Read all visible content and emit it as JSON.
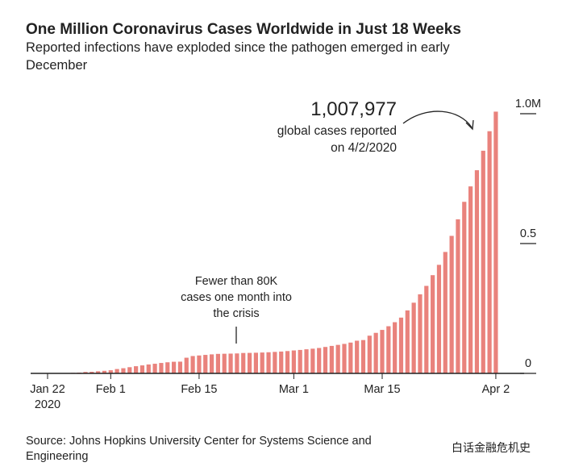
{
  "chart_data": {
    "type": "bar",
    "title": "One Million Coronavirus Cases Worldwide in Just 18 Weeks",
    "subtitle": [
      "Reported infections have exploded since the pathogen emerged in early",
      "December"
    ],
    "categories": [
      "Jan 22",
      null,
      null,
      null,
      null,
      null,
      null,
      null,
      null,
      null,
      "Feb 1",
      null,
      null,
      null,
      null,
      null,
      null,
      null,
      null,
      null,
      null,
      null,
      null,
      null,
      "Feb 15",
      null,
      null,
      null,
      null,
      null,
      null,
      null,
      null,
      null,
      null,
      null,
      null,
      null,
      null,
      "Mar 1",
      null,
      null,
      null,
      null,
      null,
      null,
      null,
      null,
      null,
      null,
      null,
      null,
      null,
      "Mar 15",
      null,
      null,
      null,
      null,
      null,
      null,
      null,
      null,
      null,
      null,
      null,
      null,
      null,
      null,
      null,
      null,
      null,
      "Apr 2"
    ],
    "first_category_year": "2020",
    "values": [
      555,
      654,
      941,
      1434,
      2118,
      2927,
      5578,
      6166,
      8234,
      9927,
      12038,
      16787,
      19881,
      23892,
      27635,
      30794,
      34391,
      37120,
      40150,
      42762,
      44802,
      45221,
      60368,
      66885,
      69030,
      71224,
      73258,
      75136,
      75639,
      76197,
      76819,
      78572,
      78958,
      79561,
      80406,
      81388,
      82746,
      84112,
      86011,
      88369,
      90306,
      92840,
      95120,
      97886,
      101801,
      105847,
      109821,
      113590,
      118620,
      125875,
      128352,
      145205,
      156101,
      167454,
      181574,
      197102,
      214821,
      242570,
      272208,
      304507,
      336953,
      378235,
      418045,
      467653,
      529591,
      593291,
      660706,
      720117,
      782365,
      857487,
      932605,
      1007977
    ],
    "color": "#e9827c",
    "ylim": [
      0,
      1000000
    ],
    "yticks": [
      0,
      {
        "value": 500000,
        "label": "0.5"
      },
      {
        "value": 1000000,
        "label": "1.0M"
      }
    ],
    "annotations": [
      {
        "lines": [
          "1,007,977",
          "global cases reported",
          "on 4/2/2020"
        ]
      },
      {
        "lines": [
          "Fewer than 80K",
          "cases one month into",
          "the crisis"
        ]
      }
    ],
    "source": [
      "Source: Johns Hopkins University Center for Systems Science and",
      "Engineering"
    ],
    "watermark": "白话金融危机史"
  }
}
